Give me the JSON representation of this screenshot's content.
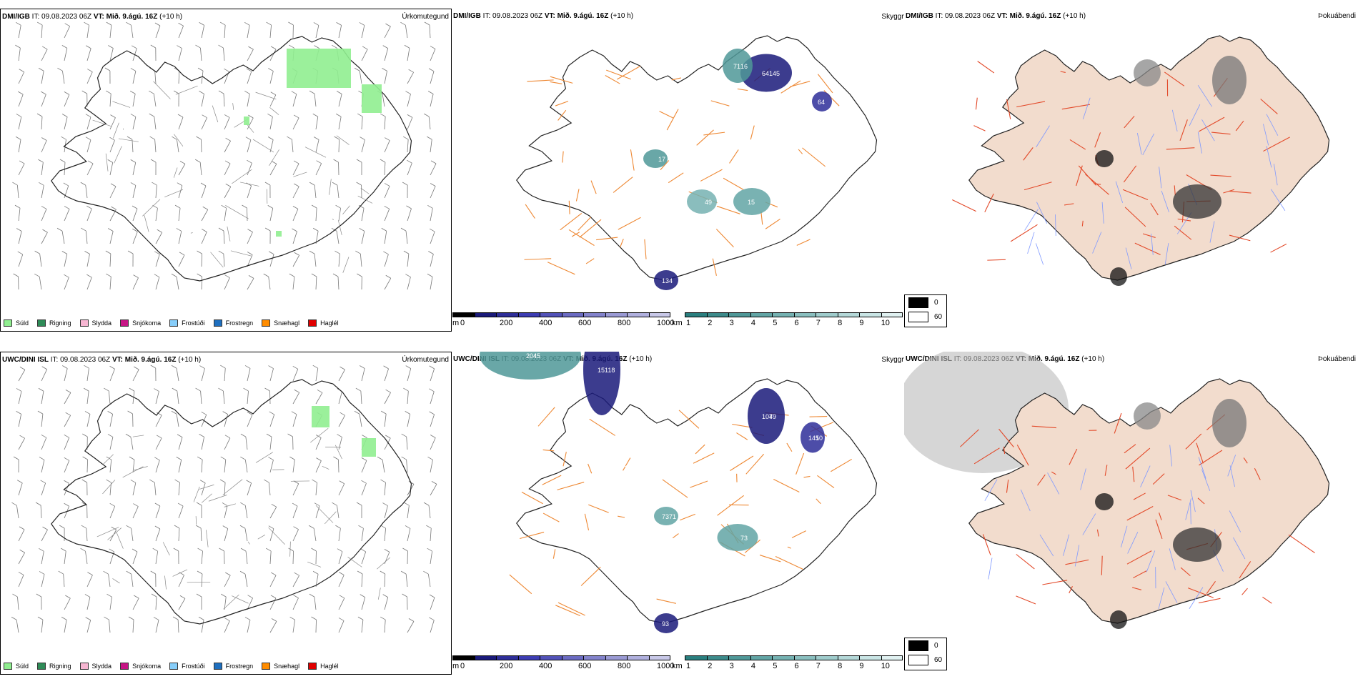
{
  "rows": [
    {
      "model": "DMI/IGB",
      "init_label": "IT:",
      "init_time": "09.08.2023 06Z",
      "valid_label": "VT:",
      "valid_time": "Mið. 9.ágú. 16Z",
      "lead": "(+10 h)"
    },
    {
      "model": "UWC/DINI ISL",
      "init_label": "IT:",
      "init_time": "09.08.2023 06Z",
      "valid_label": "VT:",
      "valid_time": "Mið. 9.ágú. 16Z",
      "lead": "(+10 h)"
    }
  ],
  "panels": {
    "precip_type": "Úrkomutegund",
    "visibility": "Skyggni",
    "fog": "Þokuábendi"
  },
  "precip_legend": [
    {
      "label": "Súld",
      "color": "#90ee90"
    },
    {
      "label": "Rigning",
      "color": "#2e8b57"
    },
    {
      "label": "Slydda",
      "color": "#f7b6d2"
    },
    {
      "label": "Snjókoma",
      "color": "#c71585"
    },
    {
      "label": "Frostúði",
      "color": "#87cefa"
    },
    {
      "label": "Frostregn",
      "color": "#1e6fbf"
    },
    {
      "label": "Snæhagl",
      "color": "#ff8c00"
    },
    {
      "label": "Haglél",
      "color": "#e00000"
    }
  ],
  "visibility_m_scale": {
    "unit": "m",
    "ticks": [
      "0",
      "200",
      "400",
      "600",
      "800",
      "1000"
    ],
    "colors": [
      "#000000",
      "#1a1a7a",
      "#2e2e99",
      "#3d3db3",
      "#5252b8",
      "#6b6bc2",
      "#8383cc",
      "#9a9ad4",
      "#b0b0de",
      "#c8c8e8"
    ]
  },
  "visibility_km_scale": {
    "unit": "km",
    "ticks": [
      "1",
      "2",
      "3",
      "4",
      "5",
      "6",
      "7",
      "8",
      "9",
      "10"
    ],
    "colors": [
      "#2a7f7f",
      "#3d8b8b",
      "#4f9898",
      "#62a5a5",
      "#75b2b2",
      "#8abfbf",
      "#9fcccc",
      "#b4d8d8",
      "#c9e5e5",
      "#e0f1f1"
    ]
  },
  "fog_scale": [
    {
      "label": "0",
      "color": "#000000"
    },
    {
      "label": "60",
      "color": "#ffffff"
    }
  ],
  "visibility_labels": {
    "row1": [
      "64",
      "16",
      "64",
      "17",
      "15",
      "49",
      "134",
      "145",
      "71"
    ],
    "row2": [
      "204",
      "118",
      "107",
      "10",
      "73",
      "73",
      "93",
      "45",
      "15",
      "49",
      "145",
      "71"
    ]
  },
  "colors": {
    "road": "#ee8833",
    "road_fog": "#e34a2a",
    "river": "#7f99ff",
    "land_fog": "#f2dccd",
    "coast": "#222222"
  }
}
